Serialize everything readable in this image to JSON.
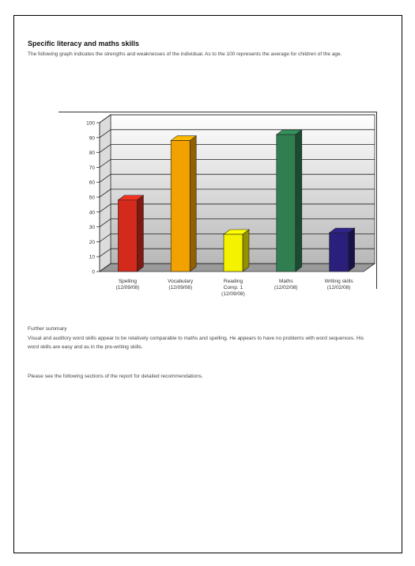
{
  "document": {
    "heading": "Specific literacy and maths skills",
    "intro": "The following graph indicates the strengths and weaknesses of the individual. As to the 100 represents the average for children of the age.",
    "summary_title": "Further summary",
    "summary": "Visual and auditory word skills appear to be relatively comparable to maths and spelling. He appears to have no problems with word sequences. His word skills are easy and as in the pre-writing skills.",
    "note": "Please see the following sections of the report for detailed recommendations."
  },
  "chart_data": {
    "type": "bar",
    "categories": [
      [
        "Spelling",
        "(12/09/08)"
      ],
      [
        "Vocabulary",
        "(12/09/08)"
      ],
      [
        "Reading",
        "Comp. 1",
        "(12/09/08)"
      ],
      [
        "Maths",
        "(12/02/08)"
      ],
      [
        "Writing skills",
        "(12/02/08)"
      ]
    ],
    "values": [
      48,
      88,
      25,
      92,
      26
    ],
    "colors": [
      "#d42a1c",
      "#f2a200",
      "#f5f200",
      "#2f7f50",
      "#2a1f7a"
    ],
    "ylim": [
      0,
      100
    ],
    "yticks": [
      0,
      10,
      20,
      30,
      40,
      50,
      60,
      70,
      80,
      90,
      100
    ],
    "grid": true,
    "style": "3d"
  }
}
